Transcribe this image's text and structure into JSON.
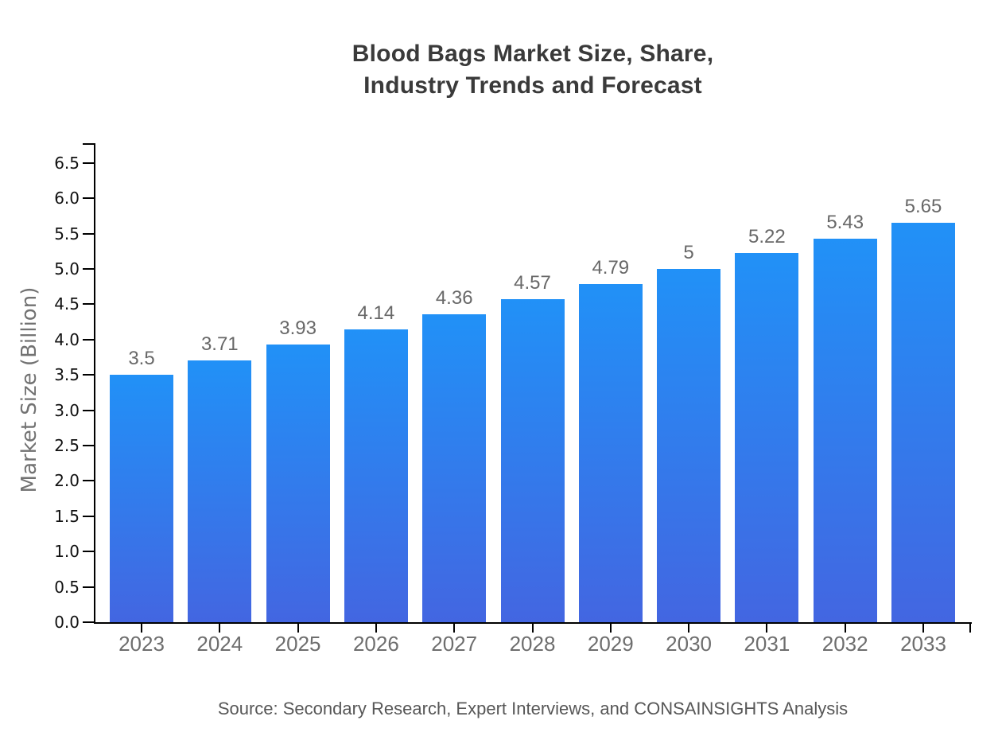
{
  "chart_data": {
    "type": "bar",
    "title": "Blood Bags Market Size, Share,\nIndustry Trends and Forecast",
    "ylabel": "Market Size (Billion)",
    "xlabel": "",
    "source": "Source: Secondary Research, Expert Interviews, and CONSAINSIGHTS Analysis",
    "categories": [
      "2023",
      "2024",
      "2025",
      "2026",
      "2027",
      "2028",
      "2029",
      "2030",
      "2031",
      "2032",
      "2033"
    ],
    "values": [
      3.5,
      3.71,
      3.93,
      4.14,
      4.36,
      4.57,
      4.79,
      5,
      5.22,
      5.43,
      5.65
    ],
    "value_labels": [
      "3.5",
      "3.71",
      "3.93",
      "4.14",
      "4.36",
      "4.57",
      "4.79",
      "5",
      "5.22",
      "5.43",
      "5.65"
    ],
    "ytick_labels": [
      "0.0",
      "0.5",
      "1.0",
      "1.5",
      "2.0",
      "2.5",
      "3.0",
      "3.5",
      "4.0",
      "4.5",
      "5.0",
      "5.5",
      "6.0",
      "6.5"
    ],
    "ylim": [
      0,
      6.5
    ],
    "grid": "off",
    "legend": "none",
    "colors": {
      "bar_gradient_top": "#2191f7",
      "bar_gradient_bottom": "#4366e1",
      "axis": "#000000",
      "title_text": "#3a3a3a",
      "tick_label_y": "#111111",
      "tick_label_x": "#6e6e6e",
      "value_label": "#686868",
      "axis_title": "#727272",
      "source_text": "#575757"
    }
  }
}
